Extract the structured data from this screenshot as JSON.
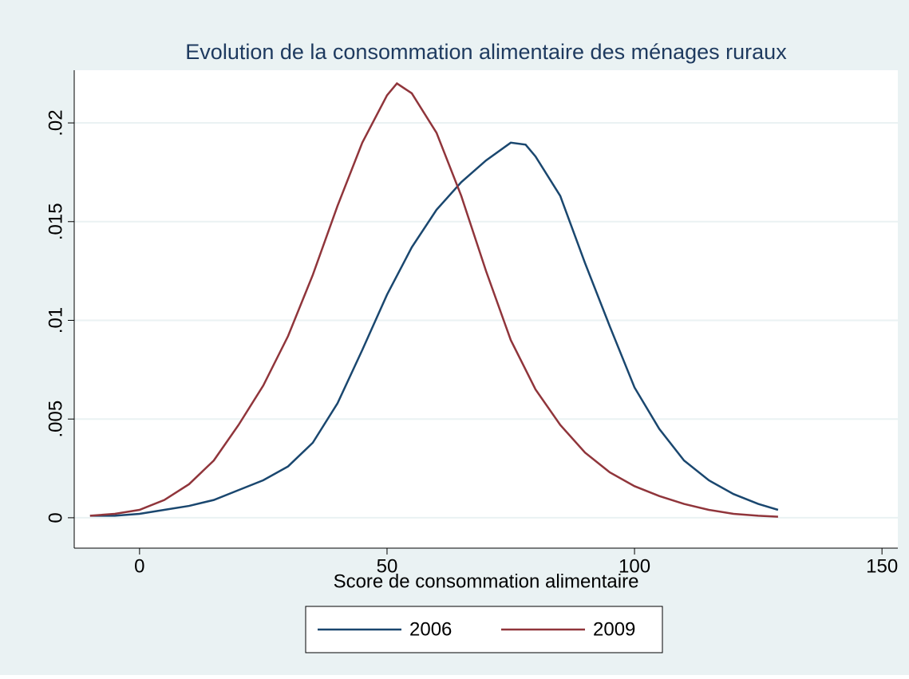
{
  "chart_data": {
    "type": "line",
    "title": "Evolution de la consommation alimentaire des ménages ruraux",
    "x_label": "Score de consommation alimentaire",
    "series": [
      {
        "name": "2006",
        "color": "#1a476f",
        "x": [
          -10,
          -5,
          0,
          5,
          10,
          15,
          20,
          25,
          30,
          35,
          40,
          45,
          50,
          55,
          60,
          65,
          70,
          75,
          78,
          80,
          85,
          90,
          95,
          100,
          105,
          110,
          115,
          120,
          125,
          129
        ],
        "values": [
          0.0001,
          0.0001,
          0.0002,
          0.0004,
          0.0006,
          0.0009,
          0.0014,
          0.0019,
          0.0026,
          0.0038,
          0.0058,
          0.0085,
          0.0113,
          0.0137,
          0.0156,
          0.017,
          0.0181,
          0.019,
          0.0189,
          0.0183,
          0.0163,
          0.0129,
          0.0097,
          0.0066,
          0.0045,
          0.0029,
          0.0019,
          0.0012,
          0.0007,
          0.0004
        ]
      },
      {
        "name": "2009",
        "color": "#90353b",
        "x": [
          -10,
          -5,
          0,
          5,
          10,
          15,
          20,
          25,
          30,
          35,
          40,
          45,
          50,
          52,
          55,
          60,
          65,
          70,
          75,
          80,
          85,
          90,
          95,
          100,
          105,
          110,
          115,
          120,
          125,
          129
        ],
        "values": [
          0.0001,
          0.0002,
          0.0004,
          0.0009,
          0.0017,
          0.0029,
          0.0047,
          0.0067,
          0.0092,
          0.0123,
          0.0158,
          0.019,
          0.0214,
          0.022,
          0.0215,
          0.0195,
          0.0163,
          0.0125,
          0.009,
          0.0065,
          0.0047,
          0.0033,
          0.0023,
          0.0016,
          0.0011,
          0.0007,
          0.0004,
          0.0002,
          0.0001,
          5e-05
        ]
      }
    ],
    "xlim": [
      -13.2,
      153.2
    ],
    "xticks": [
      0,
      50,
      100,
      150
    ],
    "ylim": [
      -0.00154,
      0.02267
    ],
    "yticks": [
      0,
      {
        "value": 0.005,
        "label": ".005"
      },
      {
        "value": 0.01,
        "label": ".01"
      },
      {
        "value": 0.015,
        "label": ".015"
      },
      {
        "value": 0.02,
        "label": ".02"
      }
    ],
    "grid": true,
    "legend": "bottom"
  }
}
